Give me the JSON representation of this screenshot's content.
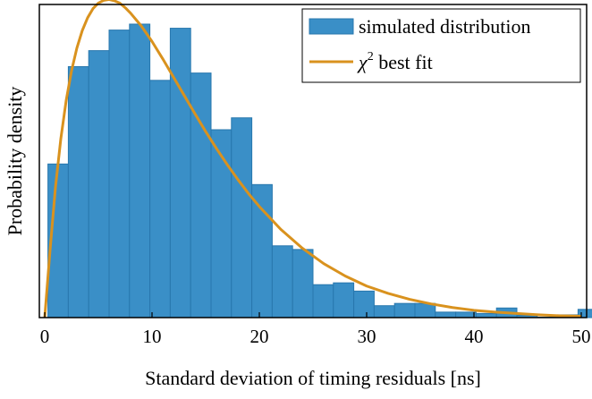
{
  "chart_data": {
    "type": "bar",
    "xlabel": "Standard deviation of timing residuals [ns]",
    "ylabel": "Probability density",
    "xlim": [
      -0.5,
      50.5
    ],
    "ylim": [
      0,
      0.0685
    ],
    "xticks": [
      0,
      10,
      20,
      30,
      40,
      50
    ],
    "yticks_shown": false,
    "grid": false,
    "legend_position": "top-right",
    "bin_width": 1.9,
    "histogram": {
      "name": "simulated distribution",
      "color": "#3a8fc7",
      "edge_color": "#2877ad",
      "bin_edges": [
        0.3,
        2.2,
        4.1,
        6.0,
        7.9,
        9.8,
        11.7,
        13.6,
        15.5,
        17.4,
        19.3,
        21.2,
        23.1,
        25.0,
        26.9,
        28.8,
        30.7,
        32.6,
        34.5,
        36.4,
        38.3,
        40.2,
        42.1,
        44.0,
        45.9,
        47.8,
        49.7
      ],
      "values": [
        0.0336,
        0.0549,
        0.0584,
        0.0629,
        0.0642,
        0.0519,
        0.0633,
        0.0535,
        0.0411,
        0.0437,
        0.0291,
        0.0157,
        0.0149,
        0.0072,
        0.0076,
        0.0058,
        0.0026,
        0.0031,
        0.0031,
        0.0012,
        0.0012,
        0.0009,
        0.0021,
        0.0005,
        0.0001,
        0.0006,
        0.0018
      ]
    },
    "fit": {
      "name": "χ² best fit",
      "name_base": "χ",
      "name_sup": "2",
      "name_rest": " best fit",
      "color": "#d9921e",
      "x": [
        0,
        0.5,
        1,
        1.5,
        2,
        2.5,
        3,
        3.5,
        4,
        4.5,
        5,
        5.5,
        6,
        6.5,
        7,
        7.5,
        8,
        9,
        10,
        11,
        12,
        13,
        14,
        15,
        16,
        17,
        18,
        19,
        20,
        22,
        24,
        26,
        28,
        30,
        32,
        34,
        36,
        38,
        40,
        42,
        44,
        46,
        48,
        50
      ],
      "values": [
        0,
        0.0148,
        0.0285,
        0.0391,
        0.0475,
        0.054,
        0.059,
        0.0628,
        0.0656,
        0.0676,
        0.0688,
        0.0694,
        0.0696,
        0.0693,
        0.0688,
        0.0678,
        0.0666,
        0.0638,
        0.0604,
        0.0566,
        0.0526,
        0.0486,
        0.0446,
        0.0407,
        0.037,
        0.0335,
        0.0302,
        0.0271,
        0.0243,
        0.0193,
        0.0152,
        0.0118,
        0.0091,
        0.0069,
        0.0053,
        0.004,
        0.003,
        0.0022,
        0.0016,
        0.0012,
        0.0009,
        0.0006,
        0.0004,
        0.0003
      ]
    }
  }
}
